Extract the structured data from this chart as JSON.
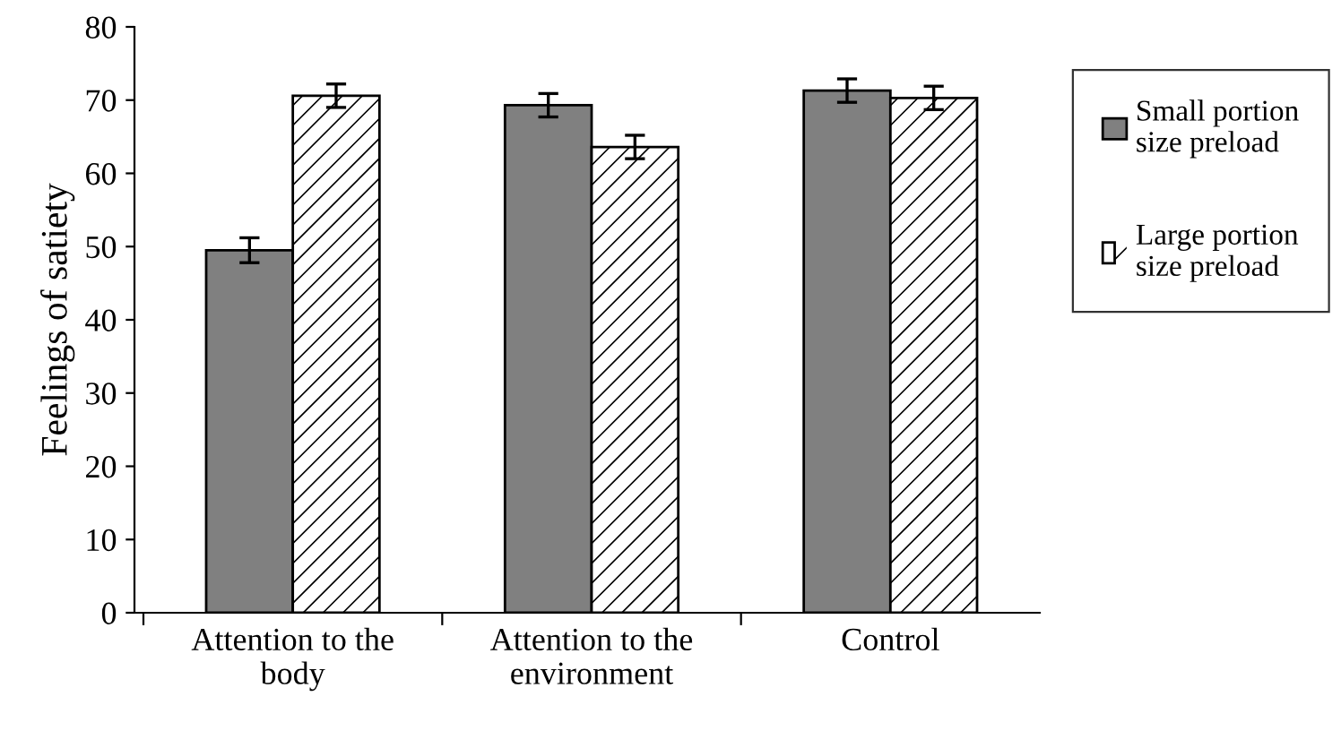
{
  "chart_data": {
    "type": "bar",
    "ylabel": "Feelings of satiety",
    "categories": [
      "Attention to the\nbody",
      "Attention to the\nenvironment",
      "Control"
    ],
    "series": [
      {
        "name": "Small portion\nsize preload",
        "color": "#808080",
        "values": [
          49.5,
          69.3,
          71.3
        ],
        "errors": [
          1.7,
          1.6,
          1.6
        ]
      },
      {
        "name": "Large portion\nsize preload",
        "color": "#ffffff",
        "values": [
          70.6,
          63.6,
          70.3
        ],
        "errors": [
          1.6,
          1.6,
          1.6
        ]
      }
    ],
    "ylim": [
      0,
      80
    ],
    "yticks": [
      0,
      10,
      20,
      30,
      40,
      50,
      60,
      70,
      80
    ],
    "grid": false,
    "legend": "right"
  }
}
